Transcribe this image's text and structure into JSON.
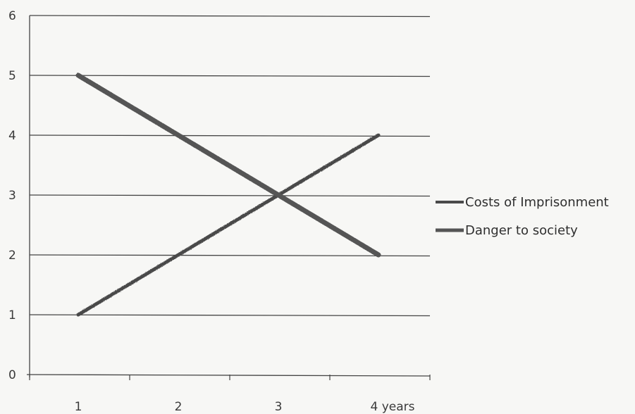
{
  "chart_data": {
    "type": "line",
    "title": "",
    "xlabel": "",
    "ylabel": "",
    "categories": [
      "1",
      "2",
      "3",
      "4 years"
    ],
    "ylim": [
      0,
      6
    ],
    "y_ticks": [
      "0",
      "1",
      "2",
      "3",
      "4",
      "5",
      "6"
    ],
    "grid": "horizontal",
    "legend_position": "right",
    "series": [
      {
        "name": "Costs of Imprisonment",
        "values": [
          1,
          2,
          3,
          4
        ],
        "color": "#4a4a4a"
      },
      {
        "name": "Danger to society",
        "values": [
          5,
          4,
          3,
          2
        ],
        "color": "#555555"
      }
    ]
  }
}
